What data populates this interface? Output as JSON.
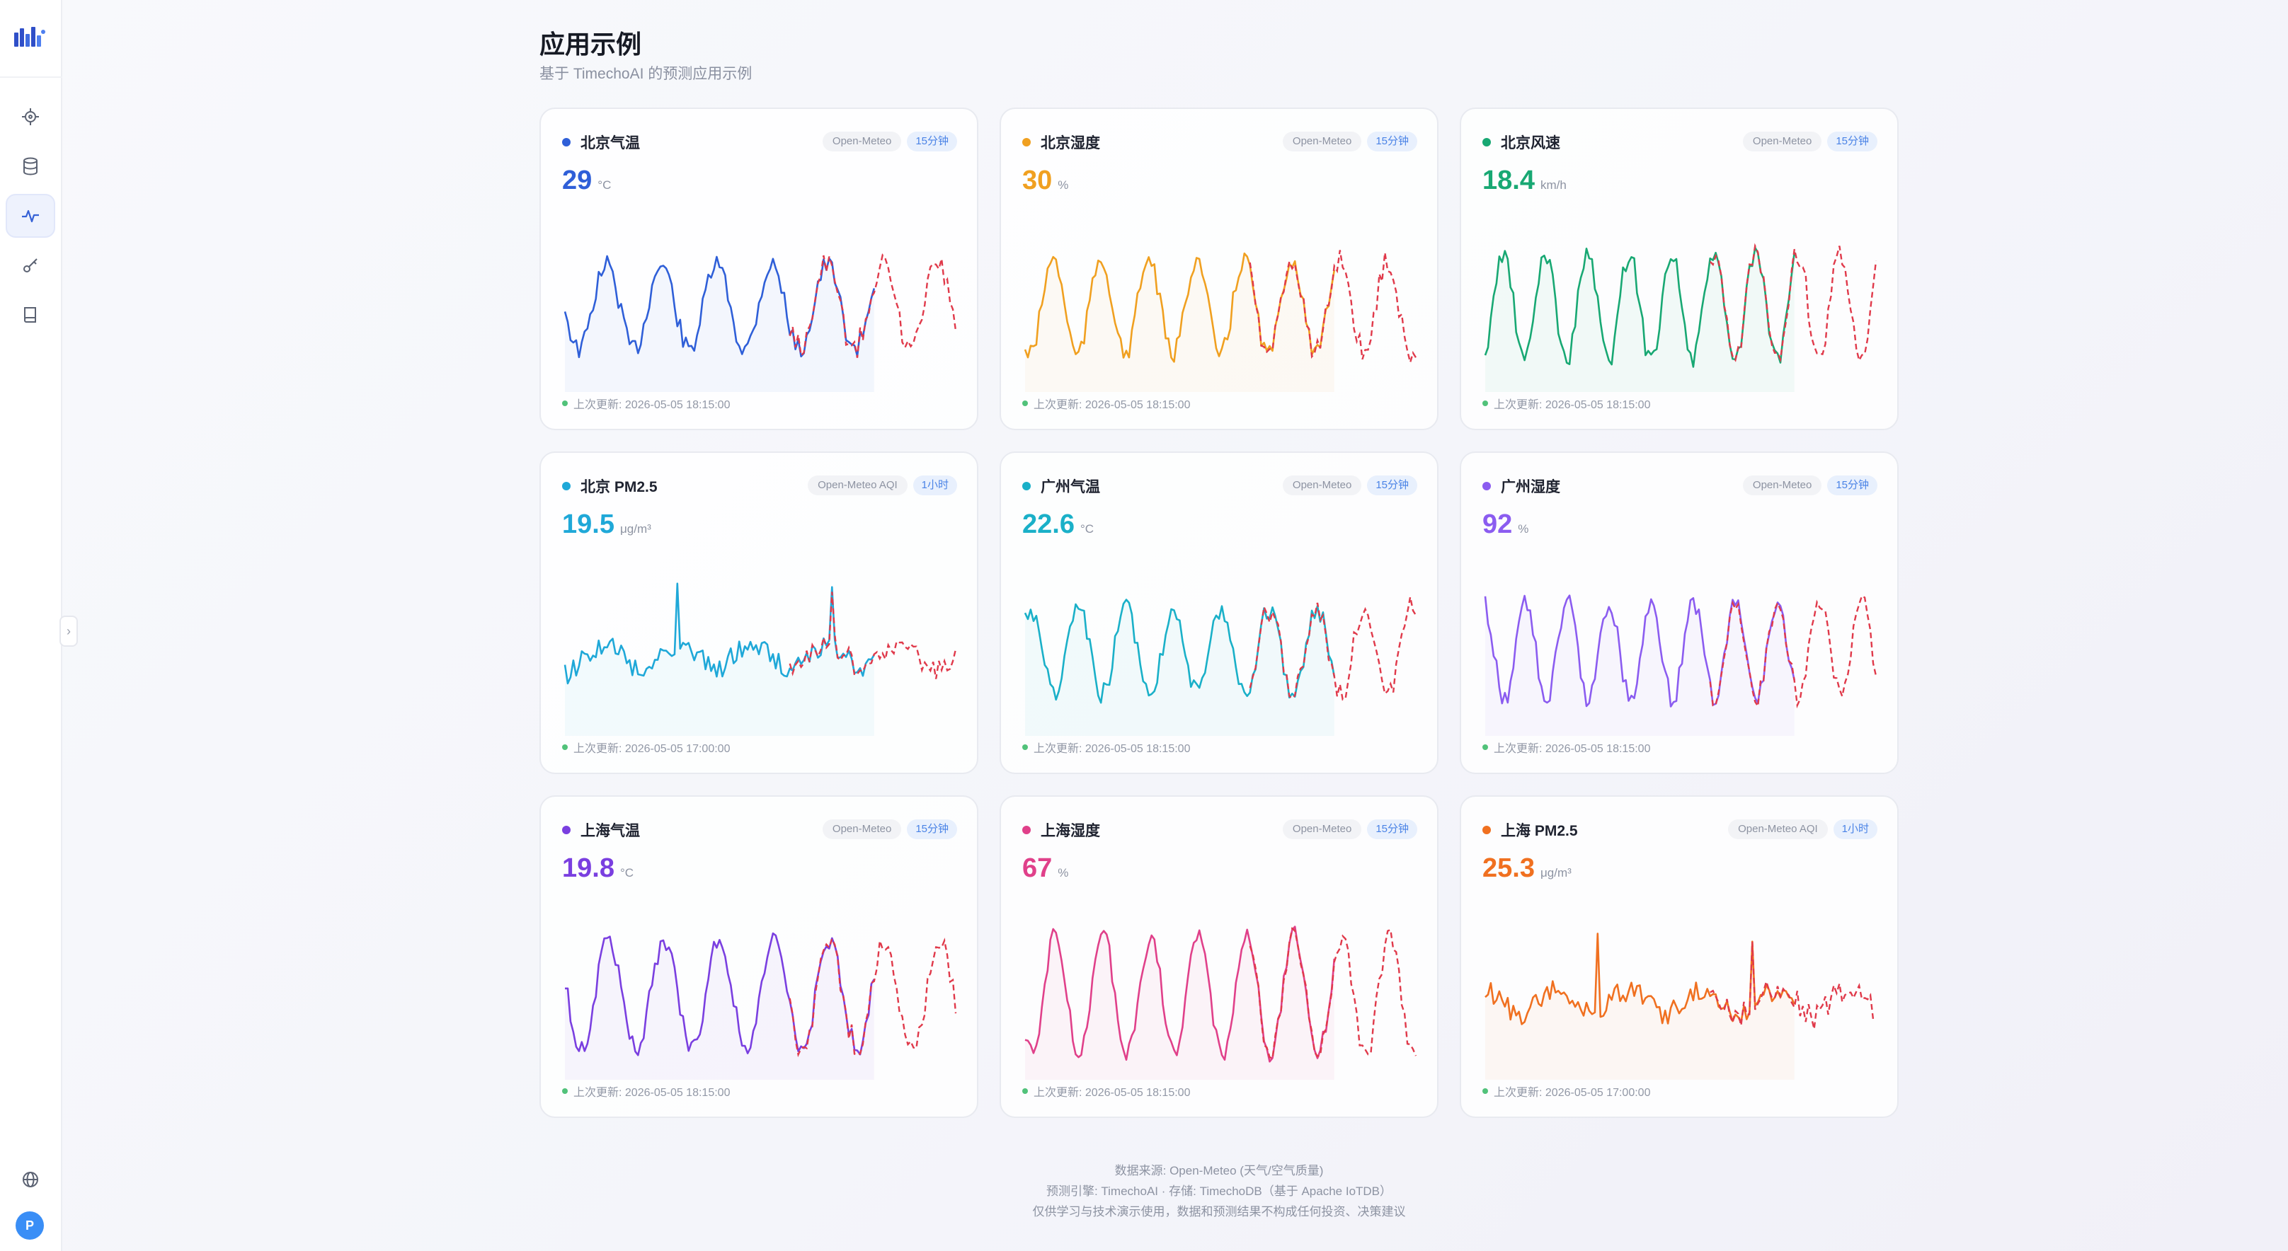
{
  "page": {
    "title": "应用示例",
    "subtitle": "基于 TimechoAI 的预测应用示例"
  },
  "sidebar": {
    "items": [
      {
        "name": "crosshair-icon",
        "active": false
      },
      {
        "name": "database-icon",
        "active": false
      },
      {
        "name": "activity-icon",
        "active": true
      },
      {
        "name": "key-icon",
        "active": false
      },
      {
        "name": "book-icon",
        "active": false
      }
    ],
    "bottom_icon": "globe-icon",
    "avatar_letter": "P"
  },
  "colors": {
    "beijing_temp": "#2f5fd8",
    "beijing_humidity": "#f0a020",
    "beijing_wind": "#18a873",
    "beijing_pm25": "#1fa8d8",
    "guangzhou_temp": "#1ab0c8",
    "guangzhou_humidity": "#8b5cf0",
    "shanghai_temp": "#7a3fe0",
    "shanghai_humidity": "#e0408a",
    "shanghai_pm25": "#f07020",
    "forecast": "#e0394a"
  },
  "cards": [
    {
      "title": "北京气温",
      "source": "Open-Meteo",
      "interval": "15分钟",
      "value": "29",
      "unit": "°C",
      "updated": "上次更新: 2026-05-05 18:15:00",
      "color": "#2f5fd8"
    },
    {
      "title": "北京湿度",
      "source": "Open-Meteo",
      "interval": "15分钟",
      "value": "30",
      "unit": "%",
      "updated": "上次更新: 2026-05-05 18:15:00",
      "color": "#f0a020"
    },
    {
      "title": "北京风速",
      "source": "Open-Meteo",
      "interval": "15分钟",
      "value": "18.4",
      "unit": "km/h",
      "updated": "上次更新: 2026-05-05 18:15:00",
      "color": "#18a873"
    },
    {
      "title": "北京 PM2.5",
      "source": "Open-Meteo AQI",
      "interval": "1小时",
      "value": "19.5",
      "unit": "μg/m³",
      "updated": "上次更新: 2026-05-05 17:00:00",
      "color": "#1fa8d8"
    },
    {
      "title": "广州气温",
      "source": "Open-Meteo",
      "interval": "15分钟",
      "value": "22.6",
      "unit": "°C",
      "updated": "上次更新: 2026-05-05 18:15:00",
      "color": "#1ab0c8"
    },
    {
      "title": "广州湿度",
      "source": "Open-Meteo",
      "interval": "15分钟",
      "value": "92",
      "unit": "%",
      "updated": "上次更新: 2026-05-05 18:15:00",
      "color": "#8b5cf0"
    },
    {
      "title": "上海气温",
      "source": "Open-Meteo",
      "interval": "15分钟",
      "value": "19.8",
      "unit": "°C",
      "updated": "上次更新: 2026-05-05 18:15:00",
      "color": "#7a3fe0"
    },
    {
      "title": "上海湿度",
      "source": "Open-Meteo",
      "interval": "15分钟",
      "value": "67",
      "unit": "%",
      "updated": "上次更新: 2026-05-05 18:15:00",
      "color": "#e0408a"
    },
    {
      "title": "上海 PM2.5",
      "source": "Open-Meteo AQI",
      "interval": "1小时",
      "value": "25.3",
      "unit": "μg/m³",
      "updated": "上次更新: 2026-05-05 17:00:00",
      "color": "#f07020"
    }
  ],
  "footer": {
    "line1": "数据来源: Open-Meteo (天气/空气质量)",
    "line2": "预测引擎: TimechoAI · 存储: TimechoDB（基于 Apache IoTDB）",
    "line3": "仅供学习与技术演示使用，数据和预测结果不构成任何投资、决策建议"
  }
}
